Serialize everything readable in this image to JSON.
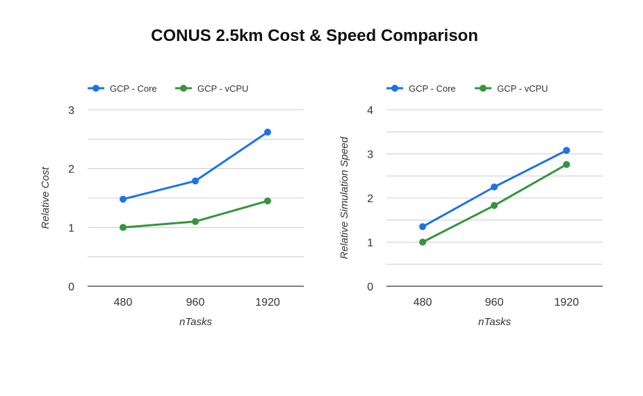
{
  "title": "CONUS 2.5km Cost & Speed Comparison",
  "colors": {
    "series_a": "#1A73E8",
    "series_b": "#34953F",
    "gridline": "#CCCCCC",
    "axis": "#333333"
  },
  "chart_data": [
    {
      "type": "line",
      "categories": [
        "480",
        "960",
        "1920"
      ],
      "series": [
        {
          "name": "GCP - Core",
          "values": [
            1.48,
            1.79,
            2.62
          ]
        },
        {
          "name": "GCP - vCPU",
          "values": [
            1.0,
            1.1,
            1.45
          ]
        }
      ],
      "xlabel": "nTasks",
      "ylabel": "Relative Cost",
      "ylim": [
        0,
        3
      ],
      "yticks": [
        0,
        1,
        2,
        3
      ],
      "minor_gridlines": true,
      "legend": "top-left"
    },
    {
      "type": "line",
      "categories": [
        "480",
        "960",
        "1920"
      ],
      "series": [
        {
          "name": "GCP - Core",
          "values": [
            1.35,
            2.25,
            3.08
          ]
        },
        {
          "name": "GCP - vCPU",
          "values": [
            1.0,
            1.83,
            2.76
          ]
        }
      ],
      "xlabel": "nTasks",
      "ylabel": "Relative Simulation Speed",
      "ylim": [
        0,
        4
      ],
      "yticks": [
        0,
        1,
        2,
        3,
        4
      ],
      "minor_gridlines": true,
      "legend": "top-left"
    }
  ]
}
